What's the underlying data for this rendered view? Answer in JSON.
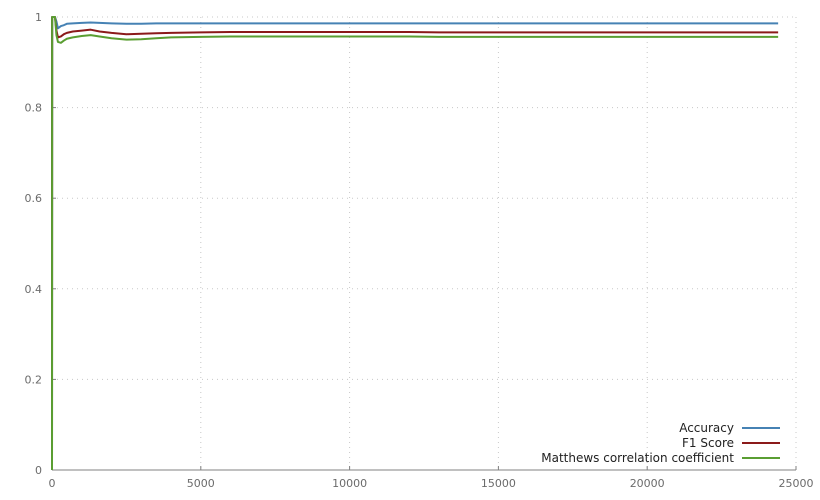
{
  "chart_data": {
    "type": "line",
    "title": "",
    "xlabel": "",
    "ylabel": "",
    "xlim": [
      0,
      25000
    ],
    "ylim": [
      0,
      1
    ],
    "x_ticks": [
      0,
      5000,
      10000,
      15000,
      20000,
      25000
    ],
    "y_ticks": [
      0,
      0.2,
      0.4,
      0.6,
      0.8,
      1
    ],
    "x_tick_labels": [
      "0",
      "5000",
      "10000",
      "15000",
      "20000",
      "25000"
    ],
    "y_tick_labels": [
      "0",
      "0.2",
      "0.4",
      "0.6",
      "0.8",
      "1"
    ],
    "grid": true,
    "legend_position": "bottom-right",
    "series": [
      {
        "name": "Accuracy",
        "color": "#4682b4",
        "x": [
          0,
          5,
          10,
          20,
          50,
          100,
          150,
          200,
          300,
          400,
          500,
          700,
          1000,
          1300,
          1600,
          2000,
          2500,
          3000,
          3500,
          4000,
          5000,
          6000,
          7000,
          8000,
          9000,
          10000,
          11000,
          12000,
          13000,
          14000,
          15000,
          16000,
          17000,
          18000,
          19000,
          20000,
          21000,
          22000,
          23000,
          24400
        ],
        "y": [
          0,
          1,
          1,
          1,
          1,
          1,
          0.99,
          0.975,
          0.98,
          0.982,
          0.985,
          0.986,
          0.987,
          0.988,
          0.987,
          0.986,
          0.985,
          0.985,
          0.986,
          0.986,
          0.986,
          0.986,
          0.986,
          0.986,
          0.986,
          0.986,
          0.986,
          0.986,
          0.986,
          0.986,
          0.986,
          0.986,
          0.986,
          0.986,
          0.986,
          0.986,
          0.986,
          0.986,
          0.986,
          0.986
        ]
      },
      {
        "name": "F1 Score",
        "color": "#8b1a1a",
        "x": [
          0,
          5,
          10,
          20,
          50,
          100,
          150,
          200,
          300,
          400,
          500,
          700,
          1000,
          1300,
          1600,
          2000,
          2500,
          3000,
          3500,
          4000,
          5000,
          6000,
          7000,
          8000,
          9000,
          10000,
          11000,
          12000,
          13000,
          14000,
          15000,
          16000,
          17000,
          18000,
          19000,
          20000,
          21000,
          22000,
          23000,
          24400
        ],
        "y": [
          0,
          1,
          1,
          1,
          1,
          1,
          0.97,
          0.955,
          0.957,
          0.962,
          0.965,
          0.968,
          0.97,
          0.972,
          0.968,
          0.965,
          0.962,
          0.963,
          0.964,
          0.965,
          0.966,
          0.967,
          0.967,
          0.967,
          0.967,
          0.967,
          0.967,
          0.967,
          0.966,
          0.966,
          0.966,
          0.966,
          0.966,
          0.966,
          0.966,
          0.966,
          0.966,
          0.966,
          0.966,
          0.966
        ]
      },
      {
        "name": "Matthews correlation coefficient",
        "color": "#5a9e32",
        "x": [
          0,
          5,
          10,
          20,
          50,
          100,
          150,
          200,
          300,
          400,
          500,
          700,
          1000,
          1300,
          1600,
          2000,
          2500,
          3000,
          3500,
          4000,
          5000,
          6000,
          7000,
          8000,
          9000,
          10000,
          11000,
          12000,
          13000,
          14000,
          15000,
          16000,
          17000,
          18000,
          19000,
          20000,
          21000,
          22000,
          23000,
          24400
        ],
        "y": [
          0,
          1,
          1,
          1,
          1,
          1,
          0.96,
          0.945,
          0.943,
          0.948,
          0.952,
          0.955,
          0.958,
          0.96,
          0.957,
          0.953,
          0.95,
          0.951,
          0.953,
          0.955,
          0.956,
          0.957,
          0.957,
          0.957,
          0.957,
          0.957,
          0.957,
          0.957,
          0.956,
          0.956,
          0.956,
          0.956,
          0.956,
          0.956,
          0.956,
          0.956,
          0.956,
          0.956,
          0.956,
          0.956
        ]
      }
    ]
  }
}
